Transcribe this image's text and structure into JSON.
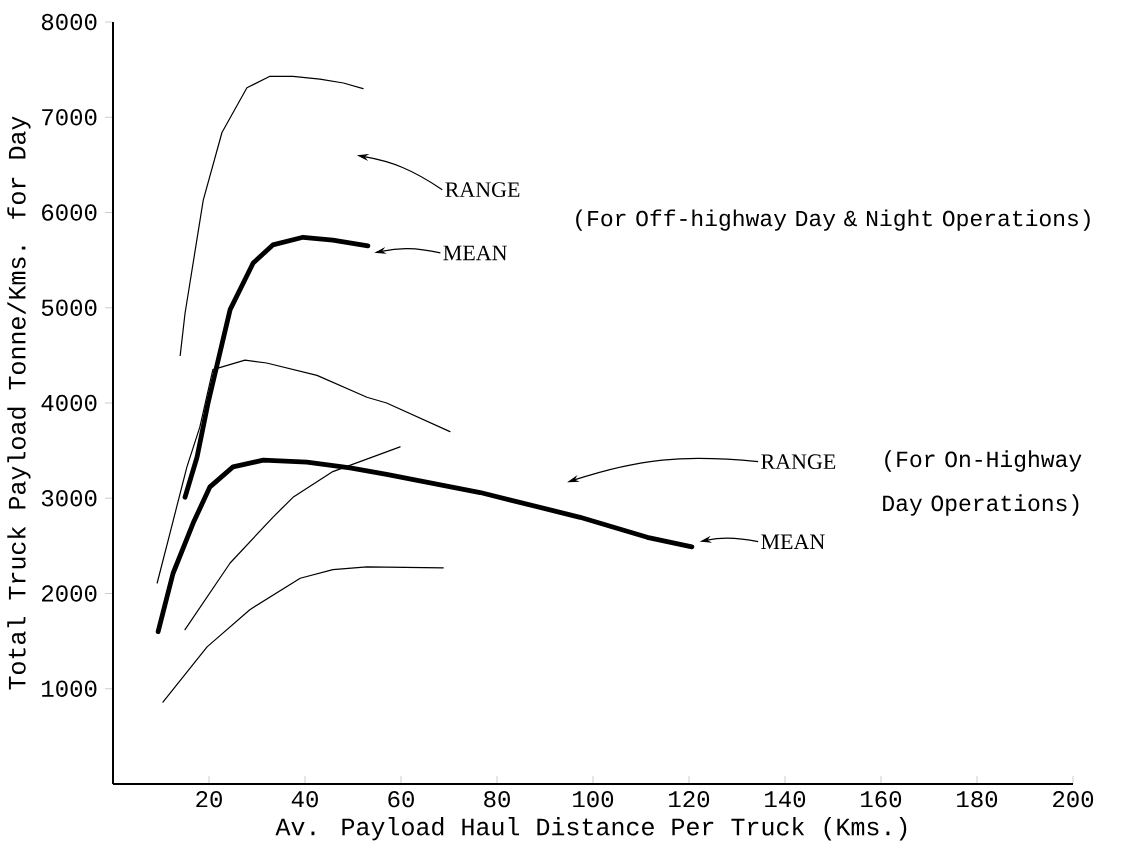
{
  "chart_data": {
    "type": "line",
    "xlabel": "Av. Payload Haul Distance Per Truck (Kms.)",
    "ylabel": "Total Truck Payload Tonne/Kms. for Day",
    "xlim": [
      0,
      200
    ],
    "ylim": [
      0,
      8000
    ],
    "xticks": [
      20,
      40,
      60,
      80,
      100,
      120,
      140,
      160,
      180,
      200
    ],
    "yticks": [
      1000,
      2000,
      3000,
      4000,
      5000,
      6000,
      7000,
      8000
    ],
    "grid": false,
    "line_style": "solid",
    "series": [
      {
        "color": "#000000",
        "x": [
          15,
          17.5,
          19.8,
          24.4,
          29.2,
          33.3,
          39.6,
          45.8,
          53.1
        ],
        "values": [
          3010,
          3430,
          4000,
          4980,
          5470,
          5660,
          5740,
          5710,
          5650
        ]
      },
      {
        "color": "#000000",
        "x": [
          14,
          15,
          18.8,
          22.7,
          27.9,
          32.7,
          37.5,
          43.1,
          48,
          52.1
        ],
        "values": [
          4500,
          4940,
          6130,
          6840,
          7310,
          7430,
          7430,
          7400,
          7360,
          7300
        ]
      },
      {
        "color": "#000000",
        "x": [
          15,
          24.4,
          33.3,
          37.5,
          45.8,
          59.8
        ],
        "values": [
          1620,
          2320,
          2800,
          3010,
          3280,
          3540
        ]
      },
      {
        "color": "#000000",
        "x": [
          9.4,
          12.5,
          16.7,
          20.2,
          25,
          31.3,
          40.4,
          49.4,
          57,
          76.5,
          97.3,
          111.3,
          120.6
        ],
        "values": [
          1600,
          2210,
          2740,
          3120,
          3330,
          3400,
          3380,
          3320,
          3250,
          3060,
          2800,
          2590,
          2490
        ]
      },
      {
        "color": "#000000",
        "x": [
          9.2,
          11.9,
          15.4,
          18.1,
          20.8,
          27.5,
          32,
          42.5,
          52.9,
          57,
          70.2
        ],
        "values": [
          2110,
          2640,
          3330,
          3750,
          4350,
          4450,
          4420,
          4290,
          4060,
          4000,
          3700
        ]
      },
      {
        "color": "#000000",
        "x": [
          10.4,
          19.6,
          28.5,
          39,
          45.8,
          52.9,
          68.8
        ],
        "values": [
          860,
          1440,
          1830,
          2160,
          2250,
          2280,
          2270
        ]
      }
    ],
    "annotations": [
      "RANGE",
      "MEAN",
      "RANGE",
      "MEAN",
      "(For Off-highway Day & Night Operations)",
      "(For On-Highway Day Operations)"
    ]
  }
}
